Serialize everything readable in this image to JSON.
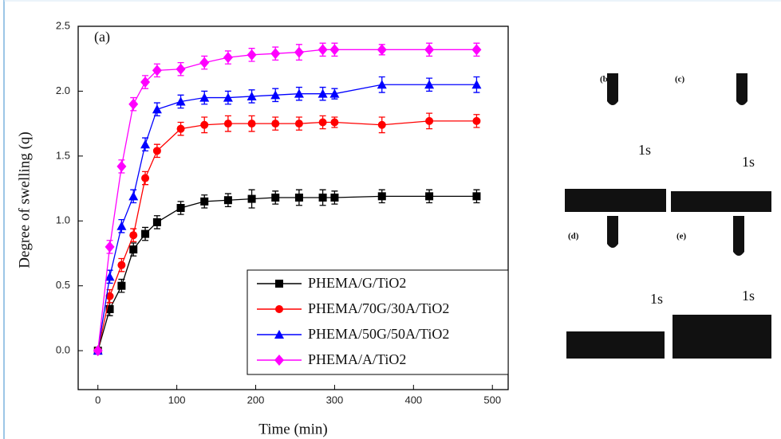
{
  "chart_data": {
    "type": "line",
    "annotation": "(a)",
    "x_label": "Time (min)",
    "y_label": "Degree of swelling (q)",
    "x": [
      0,
      15,
      30,
      45,
      60,
      75,
      105,
      135,
      165,
      195,
      225,
      255,
      285,
      300,
      360,
      420,
      480
    ],
    "series": [
      {
        "name": "PHEMA/G/TiO2",
        "color": "#000000",
        "marker": "square",
        "values": [
          0,
          0.32,
          0.5,
          0.78,
          0.9,
          0.99,
          1.1,
          1.15,
          1.16,
          1.17,
          1.18,
          1.18,
          1.18,
          1.18,
          1.19,
          1.19,
          1.19
        ],
        "errors": [
          0,
          0.05,
          0.05,
          0.05,
          0.05,
          0.05,
          0.05,
          0.05,
          0.05,
          0.07,
          0.05,
          0.06,
          0.06,
          0.05,
          0.05,
          0.05,
          0.05
        ]
      },
      {
        "name": "PHEMA/70G/30A/TiO2",
        "color": "#ff0000",
        "marker": "circle",
        "values": [
          0,
          0.42,
          0.66,
          0.89,
          1.33,
          1.54,
          1.71,
          1.74,
          1.75,
          1.75,
          1.75,
          1.75,
          1.76,
          1.76,
          1.74,
          1.77,
          1.77
        ],
        "errors": [
          0,
          0.05,
          0.05,
          0.05,
          0.05,
          0.05,
          0.05,
          0.06,
          0.06,
          0.06,
          0.05,
          0.05,
          0.05,
          0.04,
          0.06,
          0.06,
          0.05
        ]
      },
      {
        "name": "PHEMA/50G/50A/TiO2",
        "color": "#0000ff",
        "marker": "triangle",
        "values": [
          0,
          0.57,
          0.96,
          1.19,
          1.59,
          1.86,
          1.92,
          1.95,
          1.95,
          1.96,
          1.97,
          1.98,
          1.98,
          1.98,
          2.05,
          2.05,
          2.05
        ],
        "errors": [
          0,
          0.05,
          0.05,
          0.05,
          0.05,
          0.05,
          0.05,
          0.05,
          0.05,
          0.05,
          0.05,
          0.05,
          0.05,
          0.04,
          0.06,
          0.05,
          0.06
        ]
      },
      {
        "name": "PHEMA/A/TiO2",
        "color": "#ff00ff",
        "marker": "diamond",
        "values": [
          0,
          0.8,
          1.42,
          1.9,
          2.07,
          2.16,
          2.17,
          2.22,
          2.26,
          2.28,
          2.29,
          2.3,
          2.32,
          2.32,
          2.32,
          2.32,
          2.32
        ],
        "errors": [
          0,
          0.05,
          0.05,
          0.05,
          0.05,
          0.05,
          0.05,
          0.05,
          0.05,
          0.05,
          0.05,
          0.06,
          0.05,
          0.05,
          0.04,
          0.05,
          0.05
        ]
      }
    ],
    "xlim": [
      -25,
      520
    ],
    "ylim": [
      -0.3,
      2.5
    ],
    "xticks": [
      0,
      100,
      200,
      300,
      400,
      500
    ],
    "yticks": [
      {
        "value": 0,
        "label": "0.0"
      },
      0.5,
      {
        "value": 1,
        "label": "1.0"
      },
      1.5,
      {
        "value": 2,
        "label": "2.0"
      },
      2.5
    ],
    "legend": "lower right"
  },
  "panels": [
    {
      "label": "(b)",
      "time": "1s"
    },
    {
      "label": "(c)",
      "time": "1s"
    },
    {
      "label": "(d)",
      "time": "1s"
    },
    {
      "label": "(e)",
      "time": "1s"
    }
  ]
}
